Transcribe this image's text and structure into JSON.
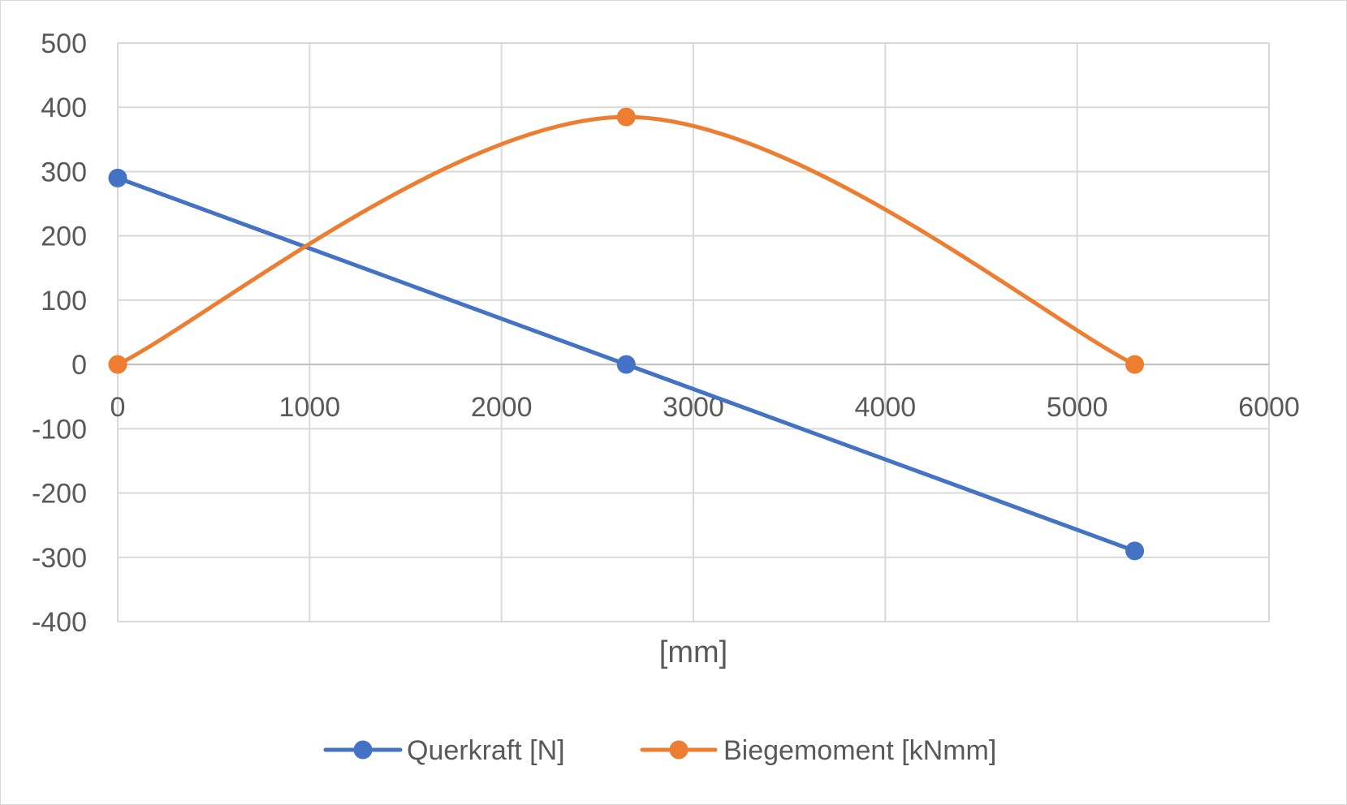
{
  "chart_data": {
    "type": "scatter",
    "title": "",
    "xlabel": "[mm]",
    "ylabel": "",
    "xlim": [
      0,
      6000
    ],
    "ylim": [
      -400,
      500
    ],
    "xticks": [
      0,
      1000,
      2000,
      3000,
      4000,
      5000,
      6000
    ],
    "yticks": [
      -400,
      -300,
      -200,
      -100,
      0,
      100,
      200,
      300,
      400,
      500
    ],
    "grid": true,
    "legend": "bottom",
    "series": [
      {
        "name": "Querkraft [N]",
        "color": "#4472C4",
        "line": "straight",
        "x": [
          0,
          2650,
          5300
        ],
        "y": [
          290,
          0,
          -290
        ]
      },
      {
        "name": "Biegemoment [kNmm]",
        "color": "#ED7D31",
        "line": "smooth",
        "x": [
          0,
          2650,
          5300
        ],
        "y": [
          0,
          385,
          0
        ]
      }
    ]
  }
}
